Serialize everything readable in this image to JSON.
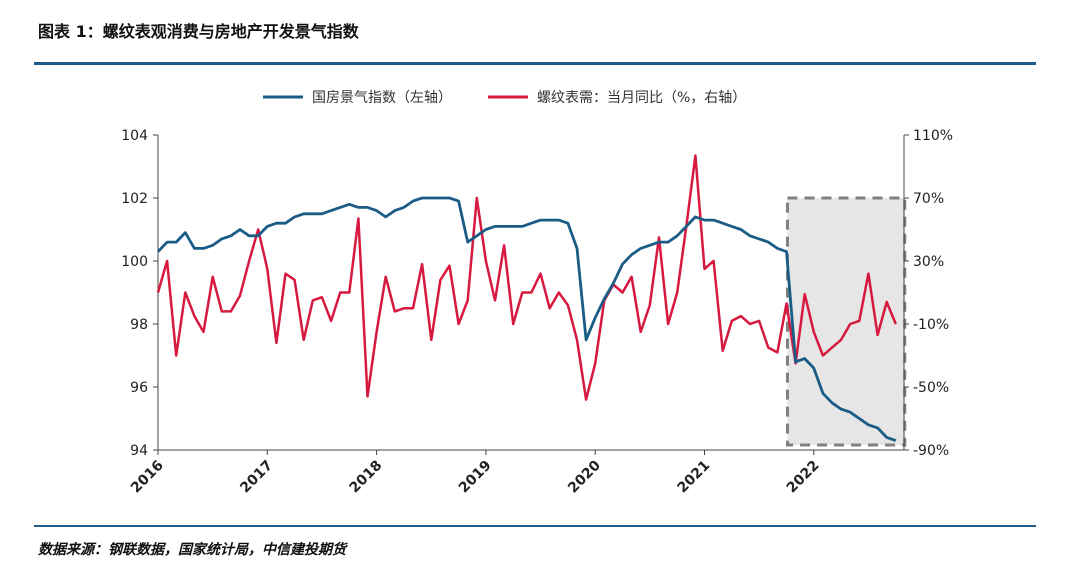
{
  "header": {
    "title": "图表 1：螺纹表观消费与房地产开发景气指数"
  },
  "footer": {
    "source": "数据来源：钢联数据，国家统计局，中信建投期货"
  },
  "chart_data": {
    "type": "line",
    "title": "图表 1：螺纹表观消费与房地产开发景气指数",
    "x_tick_labels": [
      "2016",
      "2017",
      "2018",
      "2019",
      "2020",
      "2021",
      "2022"
    ],
    "y_left": {
      "range": [
        94,
        104
      ],
      "ticks": [
        "94",
        "96",
        "98",
        "100",
        "102",
        "104"
      ]
    },
    "y_right": {
      "range": [
        -90,
        110
      ],
      "ticks": [
        "-90%",
        "-50%",
        "-10%",
        "30%",
        "70%",
        "110%"
      ]
    },
    "legend_position": "top-center",
    "highlight_box": {
      "x_range": [
        "2021-10",
        "2022-10"
      ],
      "y_right_range": [
        -90,
        70
      ],
      "style": "dashed-shaded"
    },
    "colors": {
      "series_left": "#1b5c86",
      "series_right": "#d7193f",
      "highlight_fill": "#e6e6e6",
      "highlight_border": "#808080",
      "rule": "#1f5b8a"
    },
    "series": [
      {
        "name": "国房景气指数（左轴）",
        "axis": "left",
        "x": [
          "2016-01",
          "2016-02",
          "2016-03",
          "2016-04",
          "2016-05",
          "2016-06",
          "2016-07",
          "2016-08",
          "2016-09",
          "2016-10",
          "2016-11",
          "2016-12",
          "2017-01",
          "2017-02",
          "2017-03",
          "2017-04",
          "2017-05",
          "2017-06",
          "2017-07",
          "2017-08",
          "2017-09",
          "2017-10",
          "2017-11",
          "2017-12",
          "2018-01",
          "2018-02",
          "2018-03",
          "2018-04",
          "2018-05",
          "2018-06",
          "2018-07",
          "2018-08",
          "2018-09",
          "2018-10",
          "2018-11",
          "2018-12",
          "2019-01",
          "2019-02",
          "2019-03",
          "2019-04",
          "2019-05",
          "2019-06",
          "2019-07",
          "2019-08",
          "2019-09",
          "2019-10",
          "2019-11",
          "2019-12",
          "2020-01",
          "2020-02",
          "2020-03",
          "2020-04",
          "2020-05",
          "2020-06",
          "2020-07",
          "2020-08",
          "2020-09",
          "2020-10",
          "2020-11",
          "2020-12",
          "2021-01",
          "2021-02",
          "2021-03",
          "2021-04",
          "2021-05",
          "2021-06",
          "2021-07",
          "2021-08",
          "2021-09",
          "2021-10",
          "2021-11",
          "2021-12",
          "2022-01",
          "2022-02",
          "2022-03",
          "2022-04",
          "2022-05",
          "2022-06",
          "2022-07",
          "2022-08",
          "2022-09",
          "2022-10"
        ],
        "values": [
          100.3,
          100.6,
          100.6,
          100.9,
          100.4,
          100.4,
          100.5,
          100.7,
          100.8,
          101.0,
          100.8,
          100.8,
          101.1,
          101.2,
          101.2,
          101.4,
          101.5,
          101.5,
          101.5,
          101.6,
          101.7,
          101.8,
          101.7,
          101.7,
          101.6,
          101.4,
          101.6,
          101.7,
          101.9,
          102.0,
          102.0,
          102.0,
          102.0,
          101.9,
          100.6,
          100.8,
          101.0,
          101.1,
          101.1,
          101.1,
          101.1,
          101.2,
          101.3,
          101.3,
          101.3,
          101.2,
          100.4,
          97.5,
          98.2,
          98.8,
          99.3,
          99.9,
          100.2,
          100.4,
          100.5,
          100.6,
          100.6,
          100.8,
          101.1,
          101.4,
          101.3,
          101.3,
          101.2,
          101.1,
          101.0,
          100.8,
          100.7,
          100.6,
          100.4,
          100.3,
          96.8,
          96.9,
          96.6,
          95.8,
          95.5,
          95.3,
          95.2,
          95.0,
          94.8,
          94.7,
          94.4,
          94.3
        ]
      },
      {
        "name": "螺纹表需：当月同比（%，右轴）",
        "axis": "right",
        "x": [
          "2016-01",
          "2016-02",
          "2016-03",
          "2016-04",
          "2016-05",
          "2016-06",
          "2016-07",
          "2016-08",
          "2016-09",
          "2016-10",
          "2016-11",
          "2016-12",
          "2017-01",
          "2017-02",
          "2017-03",
          "2017-04",
          "2017-05",
          "2017-06",
          "2017-07",
          "2017-08",
          "2017-09",
          "2017-10",
          "2017-11",
          "2017-12",
          "2018-01",
          "2018-02",
          "2018-03",
          "2018-04",
          "2018-05",
          "2018-06",
          "2018-07",
          "2018-08",
          "2018-09",
          "2018-10",
          "2018-11",
          "2018-12",
          "2019-01",
          "2019-02",
          "2019-03",
          "2019-04",
          "2019-05",
          "2019-06",
          "2019-07",
          "2019-08",
          "2019-09",
          "2019-10",
          "2019-11",
          "2019-12",
          "2020-01",
          "2020-02",
          "2020-03",
          "2020-04",
          "2020-05",
          "2020-06",
          "2020-07",
          "2020-08",
          "2020-09",
          "2020-10",
          "2020-11",
          "2020-12",
          "2021-01",
          "2021-02",
          "2021-03",
          "2021-04",
          "2021-05",
          "2021-06",
          "2021-07",
          "2021-08",
          "2021-09",
          "2021-10",
          "2021-11",
          "2021-12",
          "2022-01",
          "2022-02",
          "2022-03",
          "2022-04",
          "2022-05",
          "2022-06",
          "2022-07",
          "2022-08",
          "2022-09",
          "2022-10"
        ],
        "values": [
          10,
          30,
          -30,
          10,
          -5,
          -15,
          20,
          -2,
          -2,
          8,
          30,
          50,
          25,
          -22,
          22,
          18,
          -20,
          5,
          7,
          -8,
          10,
          10,
          57,
          -56,
          -15,
          20,
          -2,
          0,
          0,
          28,
          -20,
          18,
          27,
          -10,
          5,
          70,
          30,
          5,
          40,
          -10,
          10,
          10,
          22,
          0,
          10,
          2,
          -20,
          -58,
          -35,
          5,
          15,
          10,
          20,
          -15,
          2,
          45,
          -10,
          10,
          52,
          97,
          25,
          30,
          -27,
          -8,
          -5,
          -10,
          -8,
          -25,
          -28,
          3,
          -35,
          9,
          -15,
          -30,
          -25,
          -20,
          -10,
          -8,
          22,
          -17,
          4,
          -10
        ]
      }
    ]
  }
}
